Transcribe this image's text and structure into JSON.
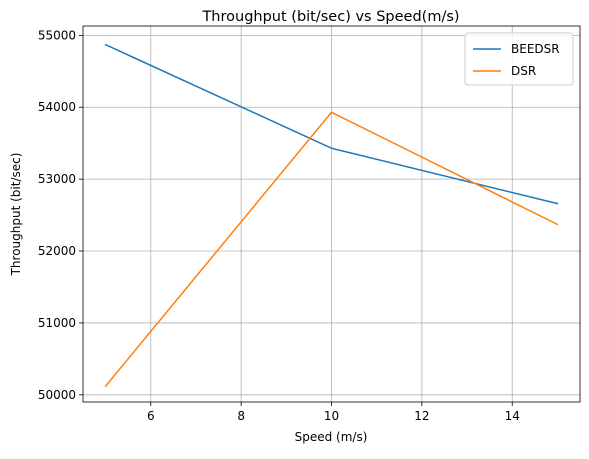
{
  "chart_data": {
    "type": "line",
    "title": "Throughput (bit/sec) vs Speed(m/s)",
    "xlabel": "Speed (m/s)",
    "ylabel": "Throughput (bit/sec)",
    "x": [
      5,
      10,
      15
    ],
    "series": [
      {
        "name": "BEEDSR",
        "values": [
          54870,
          53430,
          52660
        ],
        "color": "#1f77b4"
      },
      {
        "name": "DSR",
        "values": [
          50120,
          53930,
          52370
        ],
        "color": "#ff7f0e"
      }
    ],
    "xlim": [
      4.5,
      15.5
    ],
    "ylim": [
      49900,
      55130
    ],
    "xticks": [
      6,
      8,
      10,
      12,
      14
    ],
    "yticks": [
      50000,
      51000,
      52000,
      53000,
      54000,
      55000
    ],
    "grid": true,
    "legend_position": "top-right"
  }
}
